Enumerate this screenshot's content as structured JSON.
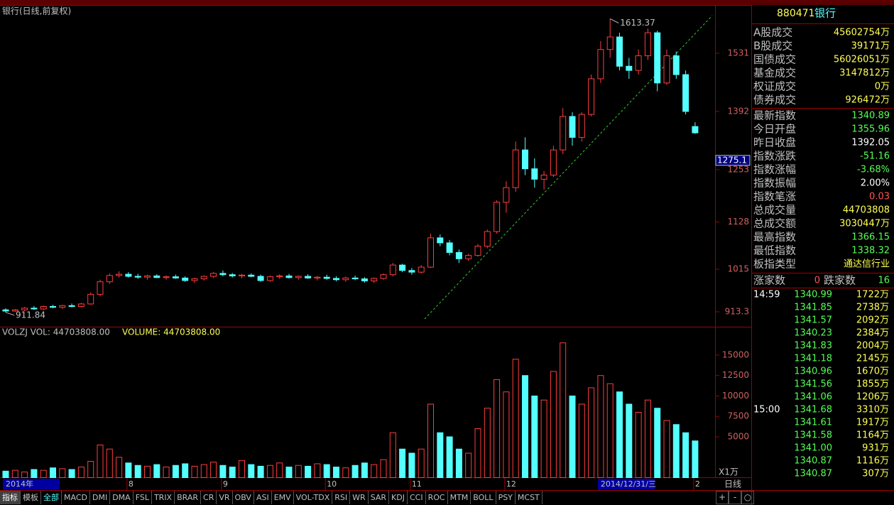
{
  "chart_data": {
    "type": "candlestick",
    "title": "银行(日线,前复权)",
    "categories": [
      "2014年",
      null,
      null,
      null,
      null,
      null,
      null,
      null,
      null,
      null,
      null,
      null,
      null,
      "8",
      null,
      null,
      null,
      null,
      null,
      null,
      null,
      null,
      null,
      "9",
      null,
      null,
      null,
      null,
      null,
      null,
      null,
      null,
      null,
      null,
      "10",
      null,
      null,
      null,
      null,
      null,
      null,
      null,
      null,
      "11",
      null,
      null,
      null,
      null,
      null,
      null,
      null,
      null,
      null,
      "12",
      null,
      null,
      null,
      null,
      null,
      null,
      null,
      null,
      null,
      "2014/12/31/三",
      null,
      null,
      null,
      null,
      null,
      null,
      null,
      null,
      null,
      "2"
    ],
    "open": [
      918,
      915,
      918,
      922,
      920,
      926,
      924,
      928,
      926,
      932,
      955,
      985,
      1000,
      1003,
      998,
      996,
      999,
      995,
      997,
      994,
      988,
      992,
      998,
      1005,
      1002,
      999,
      1001,
      998,
      988,
      997,
      999,
      995,
      998,
      994,
      996,
      993,
      990,
      994,
      992,
      987,
      993,
      1002,
      1025,
      1012,
      1008,
      1020,
      1090,
      1078,
      1055,
      1040,
      1048,
      1070,
      1105,
      1175,
      1210,
      1300,
      1255,
      1230,
      1240,
      1300,
      1380,
      1330,
      1385,
      1470,
      1540,
      1570,
      1500,
      1490,
      1525,
      1580,
      1460,
      1525,
      1480,
      1355.96
    ],
    "high": [
      922,
      920,
      925,
      927,
      928,
      930,
      930,
      933,
      935,
      960,
      990,
      1005,
      1010,
      1008,
      1004,
      1002,
      1003,
      1000,
      1002,
      998,
      995,
      1000,
      1008,
      1012,
      1006,
      1004,
      1005,
      1002,
      1000,
      1003,
      1004,
      1000,
      1003,
      999,
      1002,
      998,
      997,
      1000,
      996,
      995,
      1005,
      1030,
      1028,
      1018,
      1025,
      1100,
      1098,
      1085,
      1062,
      1052,
      1075,
      1110,
      1180,
      1225,
      1320,
      1330,
      1280,
      1250,
      1310,
      1400,
      1390,
      1390,
      1480,
      1560,
      1613.37,
      1580,
      1520,
      1540,
      1590,
      1585,
      1540,
      1535,
      1490,
      1366.15
    ],
    "low": [
      911.84,
      913,
      915,
      918,
      917,
      922,
      920,
      924,
      924,
      930,
      950,
      980,
      995,
      995,
      992,
      990,
      994,
      990,
      992,
      985,
      982,
      988,
      994,
      998,
      995,
      993,
      996,
      985,
      985,
      992,
      993,
      990,
      992,
      988,
      990,
      986,
      985,
      989,
      983,
      982,
      990,
      998,
      1008,
      1002,
      1005,
      1018,
      1070,
      1048,
      1030,
      1035,
      1045,
      1065,
      1100,
      1150,
      1200,
      1240,
      1210,
      1205,
      1235,
      1290,
      1310,
      1320,
      1380,
      1460,
      1520,
      1490,
      1470,
      1480,
      1515,
      1440,
      1455,
      1470,
      1385,
      1338.32
    ],
    "close": [
      915,
      918,
      922,
      920,
      926,
      924,
      928,
      926,
      932,
      955,
      985,
      1000,
      1003,
      998,
      996,
      999,
      995,
      997,
      994,
      988,
      992,
      998,
      1005,
      1002,
      999,
      1001,
      998,
      988,
      997,
      999,
      995,
      998,
      994,
      996,
      993,
      990,
      994,
      992,
      987,
      993,
      1002,
      1025,
      1012,
      1008,
      1020,
      1090,
      1078,
      1055,
      1040,
      1048,
      1070,
      1105,
      1175,
      1210,
      1300,
      1255,
      1230,
      1240,
      1300,
      1380,
      1330,
      1385,
      1470,
      1540,
      1570,
      1500,
      1490,
      1525,
      1580,
      1460,
      1525,
      1480,
      1392.05,
      1340.89
    ],
    "up_color": "#ff3c3c",
    "down_color": "#54ffff",
    "ylim": [
      877.6,
      1644.7
    ],
    "yticks": [
      913.3,
      1015,
      1128,
      1253,
      1392,
      1531
    ],
    "cursor_price": 1275.1,
    "volume": {
      "title": "VOLZJ VOL: 44703808.00",
      "subtitle": "VOLUME: 44703808.00",
      "unit": "X1万",
      "values": [
        800,
        900,
        700,
        1000,
        900,
        1200,
        1100,
        1000,
        1300,
        2000,
        4000,
        3500,
        2500,
        1800,
        1500,
        1400,
        1600,
        1300,
        1500,
        1700,
        1400,
        1600,
        1900,
        1500,
        1300,
        2100,
        1600,
        1400,
        1500,
        1800,
        1300,
        1500,
        1400,
        1700,
        1600,
        1300,
        1200,
        1500,
        1800,
        1600,
        2200,
        5500,
        3500,
        3000,
        3500,
        9000,
        5500,
        5000,
        3500,
        3000,
        6000,
        8500,
        12000,
        10500,
        14500,
        12500,
        10000,
        9500,
        13000,
        16500,
        10000,
        9000,
        11000,
        12500,
        11500,
        10500,
        9000,
        8000,
        9500,
        8500,
        7000,
        6500,
        5500,
        4500
      ],
      "ylim": [
        0,
        18300
      ],
      "yticks": [
        5000,
        7500,
        10000,
        12500,
        15000
      ]
    },
    "period": "日线"
  },
  "quote": {
    "code": "880471",
    "name": "银行",
    "rows": [
      {
        "label": "A股成交",
        "value": "45602754万",
        "color": "#ffff54"
      },
      {
        "label": "B股成交",
        "value": "39171万",
        "color": "#ffff54"
      },
      {
        "label": "国债成交",
        "value": "56026051万",
        "color": "#ffff54"
      },
      {
        "label": "基金成交",
        "value": "3147812万",
        "color": "#ffff54"
      },
      {
        "label": "权证成交",
        "value": "0万",
        "color": "#ffff54"
      },
      {
        "label": "债券成交",
        "value": "926472万",
        "color": "#ffff54"
      },
      {
        "label": "最新指数",
        "value": "1340.89",
        "color": "#54ff54"
      },
      {
        "label": "今日开盘",
        "value": "1355.96",
        "color": "#54ff54"
      },
      {
        "label": "昨日收盘",
        "value": "1392.05",
        "color": "#ffffff"
      },
      {
        "label": "指数涨跌",
        "value": "-51.16",
        "color": "#54ff54"
      },
      {
        "label": "指数涨幅",
        "value": "-3.68%",
        "color": "#54ff54"
      },
      {
        "label": "指数振幅",
        "value": "2.00%",
        "color": "#ffffff"
      },
      {
        "label": "指数笔涨",
        "value": "0.03",
        "color": "#ff5454"
      },
      {
        "label": "总成交量",
        "value": "44703808",
        "color": "#ffff54"
      },
      {
        "label": "总成交额",
        "value": "3030447万",
        "color": "#ffff54"
      },
      {
        "label": "最高指数",
        "value": "1366.15",
        "color": "#54ff54"
      },
      {
        "label": "最低指数",
        "value": "1338.32",
        "color": "#54ff54"
      },
      {
        "label": "板指类型",
        "value": "通达信行业",
        "color": "#ffff54"
      }
    ],
    "breadth": {
      "up_label": "涨家数",
      "up": "0",
      "down_label": "跌家数",
      "down": "16"
    },
    "trades": [
      {
        "time": "14:59",
        "price": "1340.99",
        "volume": "1722万"
      },
      {
        "time": null,
        "price": "1341.85",
        "volume": "2738万"
      },
      {
        "time": null,
        "price": "1341.57",
        "volume": "2092万"
      },
      {
        "time": null,
        "price": "1340.23",
        "volume": "2384万"
      },
      {
        "time": null,
        "price": "1341.83",
        "volume": "2004万"
      },
      {
        "time": null,
        "price": "1341.18",
        "volume": "2145万"
      },
      {
        "time": null,
        "price": "1340.96",
        "volume": "1670万"
      },
      {
        "time": null,
        "price": "1341.56",
        "volume": "1855万"
      },
      {
        "time": null,
        "price": "1341.06",
        "volume": "1206万"
      },
      {
        "time": "15:00",
        "price": "1341.68",
        "volume": "3310万"
      },
      {
        "time": null,
        "price": "1341.61",
        "volume": "1917万"
      },
      {
        "time": null,
        "price": "1341.58",
        "volume": "1164万"
      },
      {
        "time": null,
        "price": "1341.00",
        "volume": "931万"
      },
      {
        "time": null,
        "price": "1340.87",
        "volume": "1116万"
      },
      {
        "time": null,
        "price": "1340.87",
        "volume": "307万"
      }
    ]
  },
  "tabs": [
    "指标",
    "模板",
    "全部",
    "MACD",
    "DMI",
    "DMA",
    "FSL",
    "TRIX",
    "BRAR",
    "CR",
    "VR",
    "OBV",
    "ASI",
    "EMV",
    "VOL-TDX",
    "RSI",
    "WR",
    "SAR",
    "KDJ",
    "CCI",
    "ROC",
    "MTM",
    "BOLL",
    "PSY",
    "MCST"
  ],
  "controls": [
    "+",
    "-",
    "○"
  ]
}
